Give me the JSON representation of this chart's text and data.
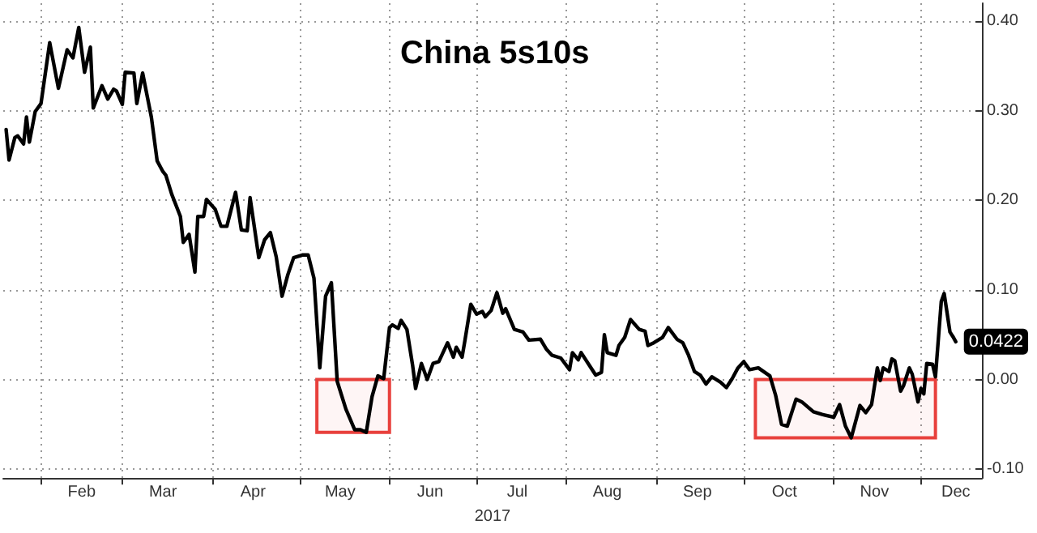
{
  "chart_data": {
    "type": "line",
    "title": "China 5s10s",
    "xlabel": "2017",
    "x": [
      "2017-01-20",
      "2017-01-21",
      "2017-01-23",
      "2017-01-24",
      "2017-01-26",
      "2017-01-27",
      "2017-01-28",
      "2017-01-30",
      "2017-02-01",
      "2017-02-04",
      "2017-02-07",
      "2017-02-10",
      "2017-02-12",
      "2017-02-14",
      "2017-02-16",
      "2017-02-18",
      "2017-02-19",
      "2017-02-22",
      "2017-02-24",
      "2017-02-26",
      "2017-02-27",
      "2017-03-01",
      "2017-03-02",
      "2017-03-05",
      "2017-03-06",
      "2017-03-08",
      "2017-03-11",
      "2017-03-13",
      "2017-03-15",
      "2017-03-16",
      "2017-03-18",
      "2017-03-21",
      "2017-03-22",
      "2017-03-24",
      "2017-03-26",
      "2017-03-27",
      "2017-03-29",
      "2017-03-30",
      "2017-04-02",
      "2017-04-04",
      "2017-04-06",
      "2017-04-09",
      "2017-04-11",
      "2017-04-13",
      "2017-04-14",
      "2017-04-17",
      "2017-04-19",
      "2017-04-21",
      "2017-04-23",
      "2017-04-25",
      "2017-04-27",
      "2017-04-29",
      "2017-05-02",
      "2017-05-04",
      "2017-05-06",
      "2017-05-08",
      "2017-05-10",
      "2017-05-12",
      "2017-05-14",
      "2017-05-17",
      "2017-05-20",
      "2017-05-22",
      "2017-05-24",
      "2017-05-26",
      "2017-05-28",
      "2017-05-30",
      "2017-06-01",
      "2017-06-02",
      "2017-06-04",
      "2017-06-05",
      "2017-06-07",
      "2017-06-09",
      "2017-06-10",
      "2017-06-12",
      "2017-06-14",
      "2017-06-16",
      "2017-06-18",
      "2017-06-21",
      "2017-06-23",
      "2017-06-24",
      "2017-06-26",
      "2017-06-27",
      "2017-06-29",
      "2017-07-01",
      "2017-07-03",
      "2017-07-04",
      "2017-07-06",
      "2017-07-08",
      "2017-07-10",
      "2017-07-11",
      "2017-07-14",
      "2017-07-17",
      "2017-07-19",
      "2017-07-23",
      "2017-07-25",
      "2017-07-27",
      "2017-07-30",
      "2017-08-02",
      "2017-08-03",
      "2017-08-05",
      "2017-08-06",
      "2017-08-09",
      "2017-08-11",
      "2017-08-13",
      "2017-08-14",
      "2017-08-15",
      "2017-08-18",
      "2017-08-19",
      "2017-08-21",
      "2017-08-23",
      "2017-08-26",
      "2017-08-28",
      "2017-08-29",
      "2017-08-31",
      "2017-09-03",
      "2017-09-05",
      "2017-09-08",
      "2017-09-10",
      "2017-09-12",
      "2017-09-14",
      "2017-09-16",
      "2017-09-18",
      "2017-09-20",
      "2017-09-23",
      "2017-09-25",
      "2017-09-27",
      "2017-09-29",
      "2017-10-01",
      "2017-10-03",
      "2017-10-06",
      "2017-10-10",
      "2017-10-12",
      "2017-10-14",
      "2017-10-16",
      "2017-10-19",
      "2017-10-21",
      "2017-10-25",
      "2017-10-28",
      "2017-11-01",
      "2017-11-03",
      "2017-11-05",
      "2017-11-07",
      "2017-11-10",
      "2017-11-12",
      "2017-11-14",
      "2017-11-16",
      "2017-11-17",
      "2017-11-18",
      "2017-11-20",
      "2017-11-21",
      "2017-11-22",
      "2017-11-24",
      "2017-11-25",
      "2017-11-27",
      "2017-11-28",
      "2017-11-30",
      "2017-12-01",
      "2017-12-02",
      "2017-12-03",
      "2017-12-05",
      "2017-12-06",
      "2017-12-08",
      "2017-12-09",
      "2017-12-11",
      "2017-12-12",
      "2017-12-13"
    ],
    "series": [
      {
        "color": "#000000",
        "values": [
          0.279,
          0.245,
          0.27,
          0.272,
          0.263,
          0.293,
          0.265,
          0.299,
          0.308,
          0.376,
          0.325,
          0.368,
          0.359,
          0.393,
          0.343,
          0.371,
          0.303,
          0.328,
          0.313,
          0.324,
          0.322,
          0.307,
          0.343,
          0.342,
          0.308,
          0.342,
          0.293,
          0.244,
          0.232,
          0.228,
          0.207,
          0.182,
          0.153,
          0.162,
          0.12,
          0.182,
          0.182,
          0.201,
          0.19,
          0.171,
          0.171,
          0.209,
          0.167,
          0.166,
          0.203,
          0.136,
          0.156,
          0.164,
          0.137,
          0.093,
          0.117,
          0.136,
          0.139,
          0.139,
          0.113,
          0.013,
          0.093,
          0.108,
          -0.002,
          -0.033,
          -0.056,
          -0.056,
          -0.059,
          -0.019,
          0.004,
          0.001,
          0.058,
          0.061,
          0.057,
          0.066,
          0.056,
          0.015,
          -0.01,
          0.018,
          0,
          0.018,
          0.02,
          0.041,
          0.025,
          0.036,
          0.025,
          0.044,
          0.084,
          0.073,
          0.076,
          0.07,
          0.077,
          0.097,
          0.074,
          0.079,
          0.056,
          0.053,
          0.044,
          0.045,
          0.034,
          0.027,
          0.024,
          0.011,
          0.03,
          0.022,
          0.03,
          0.015,
          0.005,
          0.008,
          0.05,
          0.03,
          0.027,
          0.038,
          0.047,
          0.067,
          0.056,
          0.054,
          0.038,
          0.041,
          0.047,
          0.058,
          0.045,
          0.041,
          0.027,
          0.009,
          0.005,
          -0.005,
          0.003,
          -0.003,
          -0.009,
          0.001,
          0.013,
          0.02,
          0.011,
          0.013,
          0.004,
          -0.018,
          -0.05,
          -0.052,
          -0.022,
          -0.025,
          -0.036,
          -0.039,
          -0.042,
          -0.028,
          -0.052,
          -0.065,
          -0.029,
          -0.037,
          -0.028,
          0.013,
          -0.001,
          0.013,
          0.009,
          0.023,
          0.021,
          -0.013,
          -0.007,
          0.013,
          0.006,
          -0.025,
          -0.01,
          -0.016,
          0.018,
          0.017,
          0.003,
          0.087,
          0.096,
          0.053,
          0.048,
          0.0422
        ],
        "value_labels": [
          null,
          null,
          null,
          null,
          null,
          null,
          null,
          null,
          null,
          null,
          null,
          null,
          null,
          null,
          null,
          null,
          null,
          null,
          null,
          null,
          null,
          null,
          null,
          null,
          null,
          null,
          null,
          null,
          null,
          null,
          null,
          null,
          null,
          null,
          null,
          null,
          null,
          null,
          null,
          null,
          null,
          null,
          null,
          null,
          null,
          null,
          null,
          null,
          null,
          null,
          null,
          null,
          null,
          null,
          null,
          null,
          null,
          null,
          null,
          null,
          null,
          null,
          null,
          null,
          null,
          null,
          null,
          null,
          null,
          null,
          null,
          null,
          null,
          null,
          null,
          null,
          null,
          null,
          null,
          null,
          null,
          null,
          null,
          null,
          null,
          null,
          null,
          null,
          null,
          null,
          null,
          null,
          null,
          null,
          null,
          null,
          null,
          null,
          null,
          null,
          null,
          null,
          null,
          null,
          null,
          null,
          null,
          null,
          null,
          null,
          null,
          null,
          null,
          null,
          null,
          null,
          null,
          null,
          null,
          null,
          null,
          null,
          null,
          null,
          null,
          null,
          null,
          null,
          null,
          null,
          null,
          null,
          null,
          null,
          null,
          null,
          null,
          null,
          null,
          null,
          null,
          null,
          null,
          null,
          null,
          null,
          null,
          null,
          null,
          null,
          null,
          null,
          null,
          null,
          null,
          null,
          null,
          null,
          null,
          null,
          null,
          null,
          null,
          null,
          null,
          "0.0422"
        ]
      }
    ],
    "xlim": [
      "2017-01-19",
      "2017-12-22"
    ],
    "xticks": [
      {
        "value": "2017-02-01",
        "label": null
      },
      {
        "value": "2017-02-15",
        "label": "Feb"
      },
      {
        "value": "2017-03-01",
        "label": null
      },
      {
        "value": "2017-03-15",
        "label": "Mar"
      },
      {
        "value": "2017-04-01",
        "label": null
      },
      {
        "value": "2017-04-15",
        "label": "Apr"
      },
      {
        "value": "2017-05-01",
        "label": null
      },
      {
        "value": "2017-05-15",
        "label": "May"
      },
      {
        "value": "2017-06-01",
        "label": null
      },
      {
        "value": "2017-06-15",
        "label": "Jun"
      },
      {
        "value": "2017-07-01",
        "label": null
      },
      {
        "value": "2017-07-15",
        "label": "Jul"
      },
      {
        "value": "2017-08-01",
        "label": null
      },
      {
        "value": "2017-08-15",
        "label": "Aug"
      },
      {
        "value": "2017-09-01",
        "label": null
      },
      {
        "value": "2017-09-15",
        "label": "Sep"
      },
      {
        "value": "2017-10-01",
        "label": null
      },
      {
        "value": "2017-10-15",
        "label": "Oct"
      },
      {
        "value": "2017-11-01",
        "label": null
      },
      {
        "value": "2017-11-15",
        "label": "Nov"
      },
      {
        "value": "2017-12-01",
        "label": null
      },
      {
        "value": "2017-12-13",
        "label": "Dec"
      }
    ],
    "ylim": [
      -0.11,
      0.42
    ],
    "yticks": [
      {
        "value": -0.1,
        "label": "-0.10"
      },
      {
        "value": 0,
        "label": "0.00"
      },
      {
        "value": 0.1,
        "label": "0.10"
      },
      {
        "value": 0.2,
        "label": "0.20"
      },
      {
        "value": 0.3,
        "label": "0.30"
      },
      {
        "value": 0.4,
        "label": "0.40"
      }
    ],
    "bands": [
      {
        "axis": "x",
        "from": "2017-05-07",
        "to": "2017-06-01",
        "color": "#e8403c"
      },
      {
        "axis": "x",
        "from": "2017-10-05",
        "to": "2017-12-06",
        "color": "#e8403c"
      }
    ],
    "grid": true,
    "marker": "none",
    "line_style": "solid"
  }
}
